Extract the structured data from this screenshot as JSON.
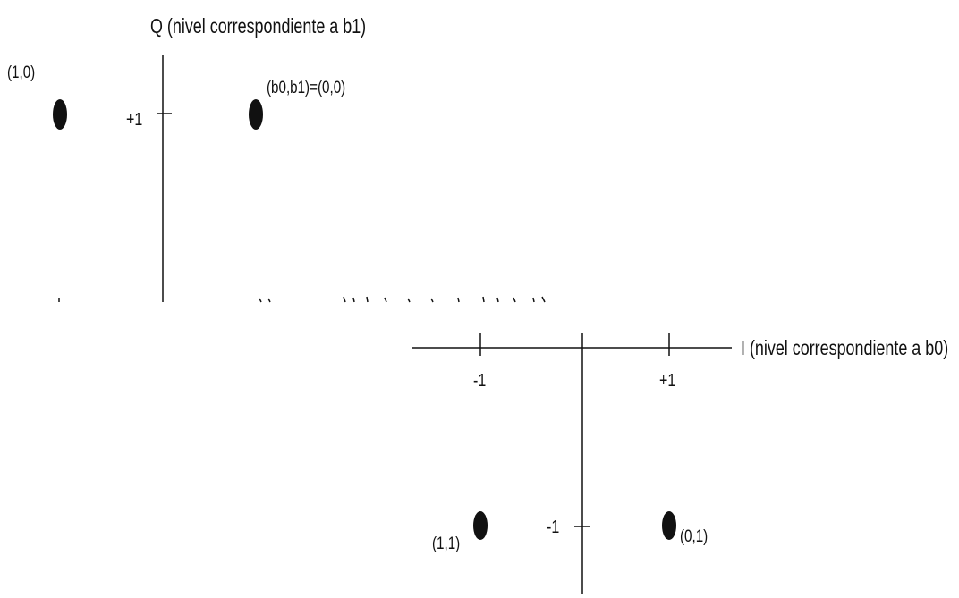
{
  "colors": {
    "ink": "#111111",
    "background": "#ffffff"
  },
  "upper_panel": {
    "axis_title": "Q (nivel correspondiente a b1)",
    "tick_plus1": "+1",
    "points": [
      {
        "label": "(1,0)",
        "i": -1,
        "q": 1
      },
      {
        "label": "(b0,b1)=(0,0)",
        "i": 1,
        "q": 1
      }
    ]
  },
  "lower_panel": {
    "axis_title": "I (nivel correspondiente a b0)",
    "tick_minus1": "-1",
    "tick_plus1": "+1",
    "q_tick_minus1": "-1",
    "points": [
      {
        "label": "(1,1)",
        "i": -1,
        "q": -1
      },
      {
        "label": "(0,1)",
        "i": 1,
        "q": -1
      }
    ]
  }
}
